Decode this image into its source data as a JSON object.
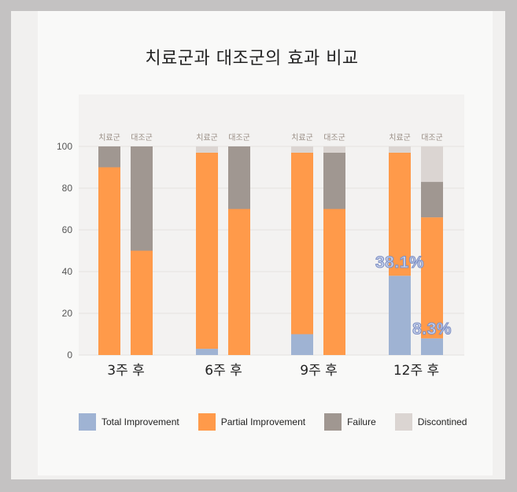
{
  "chart_data": {
    "type": "bar",
    "stacked": true,
    "title": "치료군과 대조군의 효과 비교",
    "ylim": [
      0,
      100
    ],
    "yticks": [
      0,
      20,
      40,
      60,
      80,
      100
    ],
    "groups": [
      "3주 후",
      "6주 후",
      "9주 후",
      "12주 후"
    ],
    "bar_labels": [
      "치료군",
      "대조군"
    ],
    "series": [
      {
        "name": "Total Improvement",
        "color": "#9fb3d3",
        "values": [
          [
            0,
            0
          ],
          [
            3,
            0
          ],
          [
            10,
            0
          ],
          [
            38,
            8
          ]
        ]
      },
      {
        "name": "Partial Improvement",
        "color": "#ff9a4a",
        "values": [
          [
            90,
            50
          ],
          [
            94,
            70
          ],
          [
            87,
            70
          ],
          [
            59,
            58
          ]
        ]
      },
      {
        "name": "Failure",
        "color": "#a09791",
        "values": [
          [
            10,
            50
          ],
          [
            0,
            30
          ],
          [
            0,
            27
          ],
          [
            0,
            17
          ]
        ]
      },
      {
        "name": "Discontined",
        "color": "#dbd5d2",
        "values": [
          [
            0,
            0
          ],
          [
            3,
            0
          ],
          [
            3,
            3
          ],
          [
            3,
            17
          ]
        ]
      }
    ],
    "annotations": [
      {
        "text": "38.1%",
        "group": 3,
        "bar": 0,
        "y": 45
      },
      {
        "text": "8.3%",
        "group": 3,
        "bar": 1,
        "y": 13
      }
    ],
    "grid": true,
    "legend_position": "bottom"
  }
}
